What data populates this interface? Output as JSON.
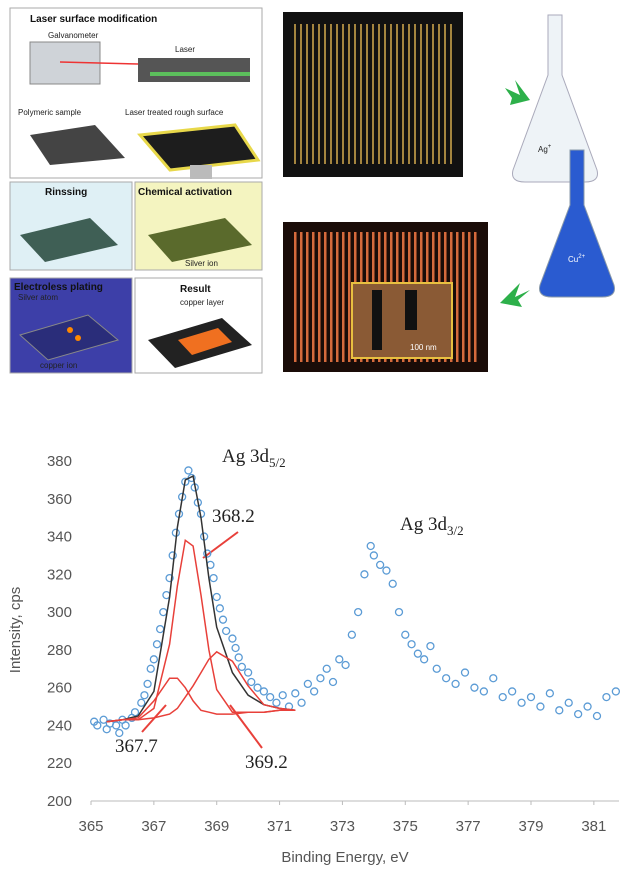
{
  "diagram": {
    "laser_title": "Laser surface modification",
    "galvanometer": "Galvanometer",
    "laser": "Laser",
    "polymeric_sample": "Polymeric sample",
    "treated_surface": "Laser treated rough surface",
    "rinsing": "Rinssing",
    "activation": "Chemical activation",
    "silver_ion": "Silver ion",
    "plating": "Electroless plating",
    "silver_atom": "Silver atom",
    "copper_ion": "copper ion",
    "result": "Result",
    "copper_layer": "copper layer",
    "scale_bar": "100 nm",
    "ag_flask": {
      "text": "Ag",
      "sup": "+"
    },
    "cu_flask": {
      "text": "Cu",
      "sup": "2+"
    }
  },
  "chart_data": {
    "type": "scatter",
    "xlabel": "Binding Energy, eV",
    "ylabel": "Intensity, cps",
    "xlim": [
      365,
      381.8
    ],
    "ylim": [
      200,
      380
    ],
    "xticks": [
      365,
      367,
      369,
      371,
      373,
      375,
      377,
      379,
      381
    ],
    "yticks": [
      200,
      220,
      240,
      260,
      280,
      300,
      320,
      340,
      360,
      380
    ],
    "annotations": [
      {
        "text": "Ag 3d",
        "sub": "5/2"
      },
      {
        "text": "Ag 3d",
        "sub": "3/2"
      },
      {
        "text": "368.2"
      },
      {
        "text": "367.7"
      },
      {
        "text": "369.2"
      }
    ],
    "series": [
      {
        "type": "scatter",
        "color": "#5b9bd5",
        "x": [
          365.1,
          365.2,
          365.4,
          365.5,
          365.6,
          365.8,
          365.9,
          366.0,
          366.1,
          366.3,
          366.4,
          366.6,
          366.7,
          366.8,
          366.9,
          367.0,
          367.1,
          367.2,
          367.3,
          367.4,
          367.5,
          367.6,
          367.7,
          367.8,
          367.9,
          368.0,
          368.1,
          368.2,
          368.3,
          368.4,
          368.5,
          368.6,
          368.7,
          368.8,
          368.9,
          369.0,
          369.1,
          369.2,
          369.3,
          369.5,
          369.6,
          369.7,
          369.8,
          370.0,
          370.1,
          370.3,
          370.5,
          370.7,
          370.9,
          371.1,
          371.3,
          371.5,
          371.7,
          371.9,
          372.1,
          372.3,
          372.5,
          372.7,
          372.9,
          373.1,
          373.3,
          373.5,
          373.7,
          373.9,
          374.0,
          374.2,
          374.4,
          374.6,
          374.8,
          375.0,
          375.2,
          375.4,
          375.6,
          375.8,
          376.0,
          376.3,
          376.6,
          376.9,
          377.2,
          377.5,
          377.8,
          378.1,
          378.4,
          378.7,
          379.0,
          379.3,
          379.6,
          379.9,
          380.2,
          380.5,
          380.8,
          381.1,
          381.4,
          381.7
        ],
        "values": [
          242,
          240,
          243,
          238,
          241,
          240,
          236,
          243,
          240,
          244,
          247,
          252,
          256,
          262,
          270,
          275,
          283,
          291,
          300,
          309,
          318,
          330,
          342,
          352,
          361,
          369,
          375,
          371,
          366,
          358,
          352,
          340,
          331,
          325,
          318,
          308,
          302,
          296,
          290,
          286,
          281,
          276,
          271,
          268,
          263,
          260,
          258,
          255,
          252,
          256,
          250,
          257,
          252,
          262,
          258,
          265,
          270,
          263,
          275,
          272,
          288,
          300,
          320,
          335,
          330,
          325,
          322,
          315,
          300,
          288,
          283,
          278,
          275,
          282,
          270,
          265,
          262,
          268,
          260,
          258,
          265,
          255,
          258,
          252,
          255,
          250,
          257,
          248,
          252,
          246,
          250,
          245,
          255,
          258
        ]
      },
      {
        "type": "line",
        "color": "#333333",
        "x": [
          365.5,
          366,
          366.5,
          367,
          367.5,
          367.75,
          368,
          368.25,
          368.5,
          368.75,
          369,
          369.5,
          370,
          370.5,
          371,
          371.5
        ],
        "values": [
          242,
          243,
          245,
          258,
          308,
          345,
          370,
          372,
          350,
          318,
          292,
          268,
          256,
          251,
          249,
          248
        ]
      },
      {
        "type": "line",
        "color": "#e8403a",
        "x": [
          365.5,
          366,
          366.5,
          367,
          367.5,
          367.75,
          368,
          368.25,
          368.5,
          368.75,
          369,
          369.5,
          370,
          370.5,
          371,
          371.5
        ],
        "values": [
          242,
          243,
          243,
          249,
          283,
          314,
          338,
          335,
          309,
          280,
          259,
          247,
          247,
          247,
          248,
          248
        ]
      },
      {
        "type": "line",
        "color": "#e8403a",
        "x": [
          365.5,
          366,
          366.5,
          367,
          367.5,
          367.75,
          368,
          368.25,
          368.5,
          368.75,
          369,
          369.5,
          370,
          370.5,
          371,
          371.5
        ],
        "values": [
          242,
          243,
          244,
          253,
          265,
          265,
          260,
          253,
          248,
          247,
          246,
          246,
          247,
          247,
          248,
          248
        ]
      },
      {
        "type": "line",
        "color": "#e8403a",
        "x": [
          365.5,
          366,
          366.5,
          367,
          367.5,
          367.75,
          368,
          368.25,
          368.5,
          368.75,
          369,
          369.5,
          370,
          370.5,
          371,
          371.5
        ],
        "values": [
          242,
          243,
          243,
          244,
          246,
          249,
          255,
          261,
          268,
          275,
          279,
          274,
          261,
          251,
          249,
          248
        ]
      }
    ]
  }
}
